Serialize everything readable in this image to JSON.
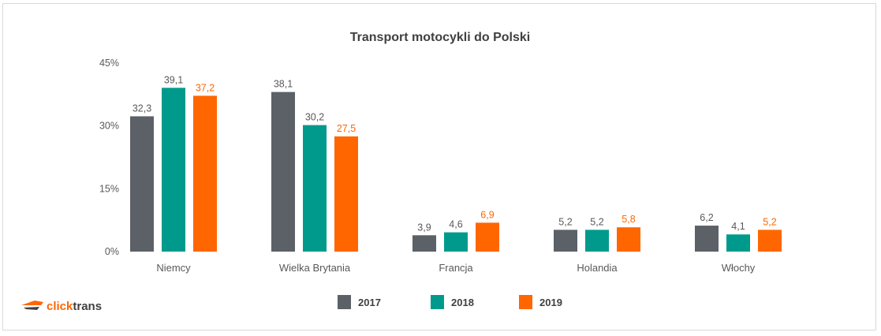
{
  "chart_data": {
    "type": "bar",
    "title": "Transport motocykli do Polski",
    "categories": [
      "Niemcy",
      "Wielka Brytania",
      "Francja",
      "Holandia",
      "Włochy"
    ],
    "series": [
      {
        "name": "2017",
        "color": "#5b6167",
        "labelColor": "#595959",
        "values": [
          32.3,
          38.1,
          3.9,
          5.2,
          6.2
        ],
        "labels": [
          "32,3",
          "38,1",
          "3,9",
          "5,2",
          "6,2"
        ]
      },
      {
        "name": "2018",
        "color": "#009a8d",
        "labelColor": "#595959",
        "values": [
          39.1,
          30.2,
          4.6,
          5.2,
          4.1
        ],
        "labels": [
          "39,1",
          "30,2",
          "4,6",
          "5,2",
          "4,1"
        ]
      },
      {
        "name": "2019",
        "color": "#ff6600",
        "labelColor": "#ff6600",
        "values": [
          37.2,
          27.5,
          6.9,
          5.8,
          5.2
        ],
        "labels": [
          "37,2",
          "27,5",
          "6,9",
          "5,8",
          "5,2"
        ]
      }
    ],
    "ylim": [
      0,
      45
    ],
    "yticks": [
      {
        "value": 0,
        "label": "0%"
      },
      {
        "value": 15,
        "label": "15%"
      },
      {
        "value": 30,
        "label": "30%"
      },
      {
        "value": 45,
        "label": "45%"
      }
    ],
    "grid": false,
    "legend_position": "bottom"
  },
  "brand": {
    "prefix": "click",
    "suffix": "trans",
    "icon": "truck-logo-icon",
    "prefix_color": "#ff6600",
    "suffix_color": "#404040"
  }
}
